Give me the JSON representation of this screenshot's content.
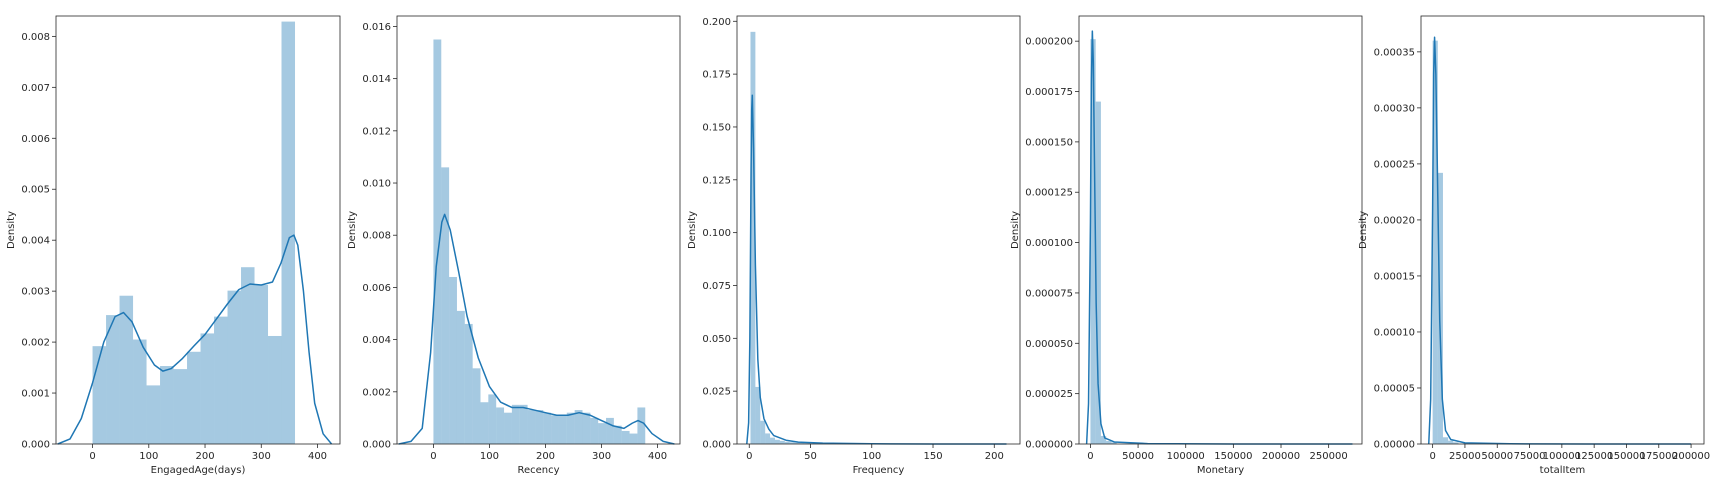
{
  "chart_data": [
    {
      "type": "histogram",
      "xlabel": "EngagedAge(days)",
      "ylabel": "Density",
      "xlim": [
        -65,
        440
      ],
      "ylim": [
        0,
        0.0084
      ],
      "xticks": [
        0,
        100,
        200,
        300,
        400
      ],
      "xtick_labels": [
        "0",
        "100",
        "200",
        "300",
        "400"
      ],
      "yticks": [
        0,
        0.001,
        0.002,
        0.003,
        0.004,
        0.005,
        0.006,
        0.007,
        0.008
      ],
      "ytick_labels": [
        "0.000",
        "0.001",
        "0.002",
        "0.003",
        "0.004",
        "0.005",
        "0.006",
        "0.007",
        "0.008"
      ],
      "bins": [
        {
          "x0": 0,
          "x1": 24,
          "y": 0.00192
        },
        {
          "x0": 24,
          "x1": 48,
          "y": 0.00253
        },
        {
          "x0": 48,
          "x1": 72,
          "y": 0.00291
        },
        {
          "x0": 72,
          "x1": 96,
          "y": 0.00205
        },
        {
          "x0": 96,
          "x1": 120,
          "y": 0.00115
        },
        {
          "x0": 120,
          "x1": 144,
          "y": 0.00153
        },
        {
          "x0": 144,
          "x1": 168,
          "y": 0.00147
        },
        {
          "x0": 168,
          "x1": 192,
          "y": 0.00181
        },
        {
          "x0": 192,
          "x1": 216,
          "y": 0.00217
        },
        {
          "x0": 216,
          "x1": 240,
          "y": 0.0025
        },
        {
          "x0": 240,
          "x1": 264,
          "y": 0.00301
        },
        {
          "x0": 264,
          "x1": 288,
          "y": 0.00347
        },
        {
          "x0": 288,
          "x1": 312,
          "y": 0.00312
        },
        {
          "x0": 312,
          "x1": 336,
          "y": 0.00212
        },
        {
          "x0": 336,
          "x1": 360,
          "y": 0.00829
        }
      ],
      "kde": [
        [
          -62,
          0
        ],
        [
          -40,
          0.0001
        ],
        [
          -20,
          0.0005
        ],
        [
          0,
          0.0012
        ],
        [
          20,
          0.002
        ],
        [
          40,
          0.0025
        ],
        [
          55,
          0.00258
        ],
        [
          70,
          0.0024
        ],
        [
          90,
          0.0019
        ],
        [
          110,
          0.00155
        ],
        [
          125,
          0.00143
        ],
        [
          140,
          0.00148
        ],
        [
          160,
          0.00168
        ],
        [
          180,
          0.00192
        ],
        [
          200,
          0.00215
        ],
        [
          220,
          0.00245
        ],
        [
          240,
          0.00275
        ],
        [
          260,
          0.00303
        ],
        [
          280,
          0.00314
        ],
        [
          300,
          0.00312
        ],
        [
          320,
          0.00318
        ],
        [
          335,
          0.00355
        ],
        [
          350,
          0.00405
        ],
        [
          358,
          0.0041
        ],
        [
          365,
          0.0039
        ],
        [
          375,
          0.003
        ],
        [
          385,
          0.0018
        ],
        [
          395,
          0.0008
        ],
        [
          410,
          0.0002
        ],
        [
          425,
          0
        ]
      ]
    },
    {
      "type": "histogram",
      "xlabel": "Recency",
      "ylabel": "Density",
      "xlim": [
        -65,
        440
      ],
      "ylim": [
        0,
        0.0164
      ],
      "xticks": [
        0,
        100,
        200,
        300,
        400
      ],
      "xtick_labels": [
        "0",
        "100",
        "200",
        "300",
        "400"
      ],
      "yticks": [
        0,
        0.002,
        0.004,
        0.006,
        0.008,
        0.01,
        0.012,
        0.014,
        0.016
      ],
      "ytick_labels": [
        "0.000",
        "0.002",
        "0.004",
        "0.006",
        "0.008",
        "0.010",
        "0.012",
        "0.014",
        "0.016"
      ],
      "bins": [
        {
          "x0": 0,
          "x1": 14,
          "y": 0.0155
        },
        {
          "x0": 14,
          "x1": 28,
          "y": 0.0106
        },
        {
          "x0": 28,
          "x1": 42,
          "y": 0.0064
        },
        {
          "x0": 42,
          "x1": 56,
          "y": 0.0051
        },
        {
          "x0": 56,
          "x1": 70,
          "y": 0.0046
        },
        {
          "x0": 70,
          "x1": 84,
          "y": 0.0029
        },
        {
          "x0": 84,
          "x1": 98,
          "y": 0.0016
        },
        {
          "x0": 98,
          "x1": 112,
          "y": 0.0019
        },
        {
          "x0": 112,
          "x1": 126,
          "y": 0.0014
        },
        {
          "x0": 126,
          "x1": 140,
          "y": 0.0012
        },
        {
          "x0": 140,
          "x1": 154,
          "y": 0.0015
        },
        {
          "x0": 154,
          "x1": 168,
          "y": 0.0015
        },
        {
          "x0": 168,
          "x1": 182,
          "y": 0.0013
        },
        {
          "x0": 182,
          "x1": 196,
          "y": 0.0013
        },
        {
          "x0": 196,
          "x1": 210,
          "y": 0.0012
        },
        {
          "x0": 210,
          "x1": 224,
          "y": 0.0011
        },
        {
          "x0": 224,
          "x1": 238,
          "y": 0.0011
        },
        {
          "x0": 238,
          "x1": 252,
          "y": 0.0012
        },
        {
          "x0": 252,
          "x1": 266,
          "y": 0.0013
        },
        {
          "x0": 266,
          "x1": 280,
          "y": 0.0012
        },
        {
          "x0": 280,
          "x1": 294,
          "y": 0.001
        },
        {
          "x0": 294,
          "x1": 308,
          "y": 0.0008
        },
        {
          "x0": 308,
          "x1": 322,
          "y": 0.001
        },
        {
          "x0": 322,
          "x1": 336,
          "y": 0.0007
        },
        {
          "x0": 336,
          "x1": 350,
          "y": 0.0005
        },
        {
          "x0": 350,
          "x1": 364,
          "y": 0.0004
        },
        {
          "x0": 364,
          "x1": 378,
          "y": 0.0014
        }
      ],
      "kde": [
        [
          -62,
          0
        ],
        [
          -40,
          0.0001
        ],
        [
          -20,
          0.0006
        ],
        [
          -5,
          0.0035
        ],
        [
          5,
          0.0068
        ],
        [
          15,
          0.0085
        ],
        [
          20,
          0.0088
        ],
        [
          30,
          0.0082
        ],
        [
          45,
          0.0066
        ],
        [
          60,
          0.0049
        ],
        [
          80,
          0.0033
        ],
        [
          100,
          0.0022
        ],
        [
          120,
          0.0016
        ],
        [
          140,
          0.0014
        ],
        [
          160,
          0.0014
        ],
        [
          180,
          0.0013
        ],
        [
          200,
          0.0012
        ],
        [
          220,
          0.0011
        ],
        [
          240,
          0.0011
        ],
        [
          260,
          0.0012
        ],
        [
          280,
          0.0011
        ],
        [
          300,
          0.0009
        ],
        [
          320,
          0.0007
        ],
        [
          340,
          0.0006
        ],
        [
          355,
          0.0008
        ],
        [
          365,
          0.0009
        ],
        [
          375,
          0.0008
        ],
        [
          390,
          0.0004
        ],
        [
          410,
          0.0001
        ],
        [
          430,
          0
        ]
      ]
    },
    {
      "type": "histogram",
      "xlabel": "Frequency",
      "ylabel": "Density",
      "xlim": [
        -10,
        221
      ],
      "ylim": [
        0,
        0.2025
      ],
      "xticks": [
        0,
        50,
        100,
        150,
        200
      ],
      "xtick_labels": [
        "0",
        "50",
        "100",
        "150",
        "200"
      ],
      "yticks": [
        0,
        0.025,
        0.05,
        0.075,
        0.1,
        0.125,
        0.15,
        0.175,
        0.2
      ],
      "ytick_labels": [
        "0.000",
        "0.025",
        "0.050",
        "0.075",
        "0.100",
        "0.125",
        "0.150",
        "0.175",
        "0.200"
      ],
      "bins": [
        {
          "x0": 1,
          "x1": 5,
          "y": 0.195
        },
        {
          "x0": 5,
          "x1": 9,
          "y": 0.027
        },
        {
          "x0": 9,
          "x1": 13,
          "y": 0.011
        },
        {
          "x0": 13,
          "x1": 17,
          "y": 0.005
        },
        {
          "x0": 17,
          "x1": 21,
          "y": 0.003
        },
        {
          "x0": 21,
          "x1": 25,
          "y": 0.002
        },
        {
          "x0": 25,
          "x1": 29,
          "y": 0.0015
        },
        {
          "x0": 29,
          "x1": 33,
          "y": 0.001
        },
        {
          "x0": 33,
          "x1": 37,
          "y": 0.0008
        },
        {
          "x0": 37,
          "x1": 41,
          "y": 0.0006
        },
        {
          "x0": 41,
          "x1": 45,
          "y": 0.0005
        },
        {
          "x0": 45,
          "x1": 50,
          "y": 0.0004
        }
      ],
      "kde": [
        [
          -2,
          0
        ],
        [
          -0.5,
          0.01
        ],
        [
          0.5,
          0.05
        ],
        [
          1.5,
          0.13
        ],
        [
          2,
          0.158
        ],
        [
          2.5,
          0.165
        ],
        [
          3.5,
          0.14
        ],
        [
          5,
          0.085
        ],
        [
          7,
          0.04
        ],
        [
          9,
          0.022
        ],
        [
          12,
          0.012
        ],
        [
          16,
          0.007
        ],
        [
          20,
          0.004
        ],
        [
          30,
          0.0018
        ],
        [
          40,
          0.0009
        ],
        [
          60,
          0.0004
        ],
        [
          100,
          0.0001
        ],
        [
          150,
          3e-05
        ],
        [
          210,
          0
        ]
      ]
    },
    {
      "type": "histogram",
      "xlabel": "Monetary",
      "ylabel": "Density",
      "xlim": [
        -12000,
        285000
      ],
      "ylim": [
        0,
        0.0002125
      ],
      "xticks": [
        0,
        50000,
        100000,
        150000,
        200000,
        250000
      ],
      "xtick_labels": [
        "0",
        "50000",
        "100000",
        "150000",
        "200000",
        "250000"
      ],
      "yticks": [
        0,
        2.5e-05,
        5e-05,
        7.5e-05,
        0.0001,
        0.000125,
        0.00015,
        0.000175,
        0.0002
      ],
      "ytick_labels": [
        "0.000000",
        "0.000025",
        "0.000050",
        "0.000075",
        "0.000100",
        "0.000125",
        "0.000150",
        "0.000175",
        "0.000200"
      ],
      "bins": [
        {
          "x0": 0,
          "x1": 5500,
          "y": 0.000201
        },
        {
          "x0": 5500,
          "x1": 11000,
          "y": 0.00017
        },
        {
          "x0": 11000,
          "x1": 16500,
          "y": 4e-06
        },
        {
          "x0": 16500,
          "x1": 22000,
          "y": 1.5e-06
        },
        {
          "x0": 22000,
          "x1": 27500,
          "y": 8e-07
        }
      ],
      "kde": [
        [
          -4000,
          0
        ],
        [
          -2000,
          2e-05
        ],
        [
          0,
          0.00011
        ],
        [
          1000,
          0.00018
        ],
        [
          2000,
          0.000205
        ],
        [
          3000,
          0.00019
        ],
        [
          4500,
          0.00013
        ],
        [
          6000,
          7e-05
        ],
        [
          8000,
          3e-05
        ],
        [
          11000,
          1e-05
        ],
        [
          15000,
          3e-06
        ],
        [
          25000,
          1e-06
        ],
        [
          60000,
          2e-07
        ],
        [
          150000,
          0
        ],
        [
          275000,
          0
        ]
      ]
    },
    {
      "type": "histogram",
      "xlabel": "totalItem",
      "ylabel": "Density",
      "xlim": [
        -9000,
        210000
      ],
      "ylim": [
        0,
        0.000382
      ],
      "xticks": [
        0,
        25000,
        50000,
        75000,
        100000,
        125000,
        150000,
        175000,
        200000
      ],
      "xtick_labels": [
        "0",
        "25000",
        "50000",
        "75000",
        "100000",
        "125000",
        "150000",
        "175000",
        "200000"
      ],
      "yticks": [
        0,
        5e-05,
        0.0001,
        0.00015,
        0.0002,
        0.00025,
        0.0003,
        0.00035
      ],
      "ytick_labels": [
        "0.00000",
        "0.00005",
        "0.00010",
        "0.00015",
        "0.00020",
        "0.00025",
        "0.00030",
        "0.00035"
      ],
      "bins": [
        {
          "x0": 0,
          "x1": 4000,
          "y": 0.00036
        },
        {
          "x0": 4000,
          "x1": 8000,
          "y": 0.000242
        },
        {
          "x0": 8000,
          "x1": 12000,
          "y": 6e-06
        },
        {
          "x0": 12000,
          "x1": 16000,
          "y": 3e-06
        },
        {
          "x0": 16000,
          "x1": 20000,
          "y": 1.5e-06
        }
      ],
      "kde": [
        [
          -3000,
          0
        ],
        [
          -1500,
          4e-05
        ],
        [
          0,
          0.00021
        ],
        [
          800,
          0.00033
        ],
        [
          1500,
          0.000363
        ],
        [
          2500,
          0.00033
        ],
        [
          4000,
          0.00022
        ],
        [
          5500,
          0.00011
        ],
        [
          7500,
          4e-05
        ],
        [
          10000,
          1.2e-05
        ],
        [
          14000,
          4e-06
        ],
        [
          25000,
          1e-06
        ],
        [
          60000,
          2e-07
        ],
        [
          120000,
          0
        ],
        [
          200000,
          0
        ]
      ]
    }
  ]
}
